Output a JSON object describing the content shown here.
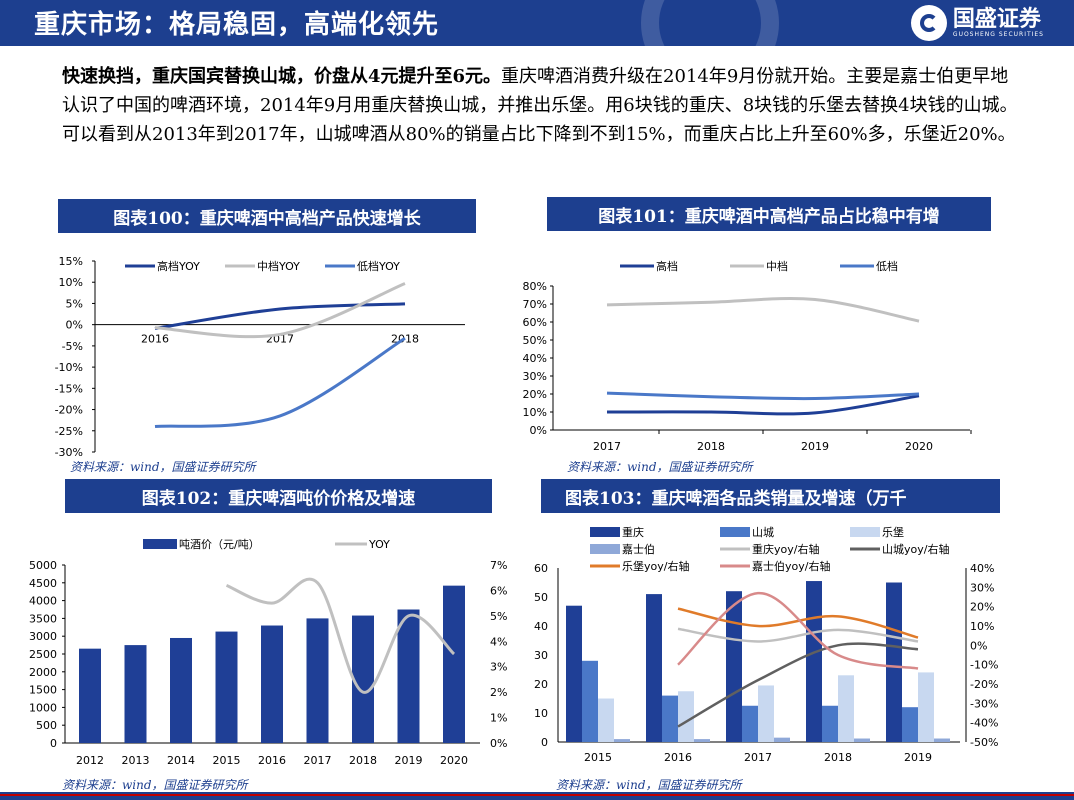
{
  "header": {
    "title": "重庆市场：格局稳固，高端化领先",
    "logo_cn": "国盛证券",
    "logo_en": "GUOSHENG SECURITIES"
  },
  "intro": {
    "bold": "快速换挡，重庆国宾替换山城，价盘从4元提升至6元。",
    "text": "重庆啤酒消费升级在2014年9月份就开始。主要是嘉士伯更早地认识了中国的啤酒环境，2014年9月用重庆替换山城，并推出乐堡。用6块钱的重庆、8块钱的乐堡去替换4块钱的山城。可以看到从2013年到2017年，山城啤酒从80%的销量占比下降到不到15%，而重庆占比上升至60%多，乐堡近20%。"
  },
  "captions": {
    "c100": "图表100：重庆啤酒中高档产品快速增长",
    "c101": "图表101：重庆啤酒中高档产品占比稳中有增",
    "c102": "图表102：重庆啤酒吨价价格及增速",
    "c103": "图表103：重庆啤酒各品类销量及增速（万千"
  },
  "source_text": "资料来源：wind，国盛证券研究所",
  "colors": {
    "navy": "#1d3f8f",
    "dark_blue": "#1f3f96",
    "mid_blue": "#4a78c8",
    "light_blue": "#c8d8f0",
    "pale_blue": "#8fa8d8",
    "gray": "#c0c0c0",
    "dark_gray": "#606060",
    "orange": "#e07b2a",
    "pink": "#d88a8a"
  },
  "chart_data": [
    {
      "id": "c100",
      "type": "line",
      "x": [
        "2016",
        "2017",
        "2018"
      ],
      "series": [
        {
          "name": "高档YOY",
          "values": [
            -0.9,
            3.7,
            4.9
          ],
          "color": "#1f3f96"
        },
        {
          "name": "中档YOY",
          "values": [
            -0.7,
            -2.3,
            9.7
          ],
          "color": "#c0c0c0"
        },
        {
          "name": "低档YOY",
          "values": [
            -24.0,
            -21.5,
            -3.2
          ],
          "color": "#4a78c8"
        }
      ],
      "yticks": [
        "15%",
        "10%",
        "5%",
        "0%",
        "-5%",
        "-10%",
        "-15%",
        "-20%",
        "-25%",
        "-30%"
      ],
      "ylim": [
        -30,
        15
      ]
    },
    {
      "id": "c101",
      "type": "line",
      "x": [
        "2017",
        "2018",
        "2019",
        "2020"
      ],
      "series": [
        {
          "name": "高档",
          "values": [
            10,
            10,
            9.5,
            19
          ],
          "color": "#1f3f96"
        },
        {
          "name": "中档",
          "values": [
            69.5,
            71,
            72.5,
            60.5
          ],
          "color": "#c0c0c0"
        },
        {
          "name": "低档",
          "values": [
            20.5,
            18.5,
            17.5,
            20
          ],
          "color": "#4a78c8"
        }
      ],
      "yticks": [
        "80%",
        "70%",
        "60%",
        "50%",
        "40%",
        "30%",
        "20%",
        "10%",
        "0%"
      ],
      "ylim": [
        0,
        80
      ]
    },
    {
      "id": "c102",
      "type": "bar",
      "categories": [
        "2012",
        "2013",
        "2014",
        "2015",
        "2016",
        "2017",
        "2018",
        "2019",
        "2020"
      ],
      "bar_series": {
        "name": "吨酒价（元/吨）",
        "values": [
          2650,
          2750,
          2950,
          3130,
          3300,
          3500,
          3580,
          3750,
          4420
        ],
        "color": "#1f3f96"
      },
      "line_series": {
        "name": "YOY",
        "values": [
          null,
          null,
          null,
          6.2,
          5.5,
          6.3,
          2.0,
          5.0,
          3.5
        ],
        "color": "#c0c0c0"
      },
      "yticks_left": [
        "5000",
        "4500",
        "4000",
        "3500",
        "3000",
        "2500",
        "2000",
        "1500",
        "1000",
        "500",
        "0"
      ],
      "yticks_right": [
        "7%",
        "6%",
        "5%",
        "4%",
        "3%",
        "2%",
        "1%",
        "0%"
      ],
      "ylim_left": [
        0,
        5000
      ],
      "ylim_right": [
        0,
        7
      ]
    },
    {
      "id": "c103",
      "type": "bar",
      "categories": [
        "2015",
        "2016",
        "2017",
        "2018",
        "2019"
      ],
      "bar_series": [
        {
          "name": "重庆",
          "values": [
            47,
            51,
            52,
            55.5,
            55
          ],
          "color": "#1f3f96"
        },
        {
          "name": "山城",
          "values": [
            28,
            16,
            12.5,
            12.5,
            12
          ],
          "color": "#4a78c8"
        },
        {
          "name": "乐堡",
          "values": [
            15,
            17.5,
            19.5,
            23,
            24
          ],
          "color": "#c8d8f0"
        },
        {
          "name": "嘉士伯",
          "values": [
            1,
            1,
            1.5,
            1.2,
            1.2
          ],
          "color": "#8fa8d8"
        }
      ],
      "line_series": [
        {
          "name": "重庆yoy/右轴",
          "values": [
            null,
            8.5,
            2,
            8,
            2
          ],
          "color": "#c0c0c0"
        },
        {
          "name": "山城yoy/右轴",
          "values": [
            null,
            -42,
            -18,
            0,
            -2
          ],
          "color": "#606060"
        },
        {
          "name": "乐堡yoy/右轴",
          "values": [
            null,
            19,
            10,
            15,
            4
          ],
          "color": "#e07b2a"
        },
        {
          "name": "嘉士伯yoy/右轴",
          "values": [
            null,
            -10,
            27,
            -5,
            -12
          ],
          "color": "#d88a8a"
        }
      ],
      "yticks_left": [
        "60",
        "50",
        "40",
        "30",
        "20",
        "10",
        "0"
      ],
      "yticks_right": [
        "40%",
        "30%",
        "20%",
        "10%",
        "0%",
        "-10%",
        "-20%",
        "-30%",
        "-40%",
        "-50%"
      ],
      "ylim_left": [
        0,
        60
      ],
      "ylim_right": [
        -50,
        40
      ]
    }
  ]
}
